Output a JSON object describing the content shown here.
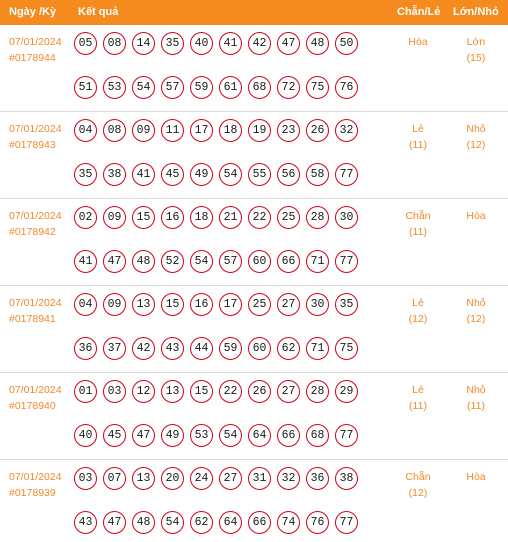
{
  "header": {
    "date_label": "Ngày /Kỳ",
    "result_label": "Kết quả",
    "odd_even_label": "Chẵn/Lẻ",
    "big_small_label": "Lớn/Nhỏ"
  },
  "rows": [
    {
      "date": "07/01/2024",
      "draw": "#0178944",
      "numbers_top": [
        "05",
        "08",
        "14",
        "35",
        "40",
        "41",
        "42",
        "47",
        "48",
        "50"
      ],
      "numbers_bottom": [
        "51",
        "53",
        "54",
        "57",
        "59",
        "61",
        "68",
        "72",
        "75",
        "76"
      ],
      "odd_even": "Hòa",
      "odd_even_count": "",
      "big_small": "Lớn",
      "big_small_count": "(15)"
    },
    {
      "date": "07/01/2024",
      "draw": "#0178943",
      "numbers_top": [
        "04",
        "08",
        "09",
        "11",
        "17",
        "18",
        "19",
        "23",
        "26",
        "32"
      ],
      "numbers_bottom": [
        "35",
        "38",
        "41",
        "45",
        "49",
        "54",
        "55",
        "56",
        "58",
        "77"
      ],
      "odd_even": "Lẻ",
      "odd_even_count": "(11)",
      "big_small": "Nhỏ",
      "big_small_count": "(12)"
    },
    {
      "date": "07/01/2024",
      "draw": "#0178942",
      "numbers_top": [
        "02",
        "09",
        "15",
        "16",
        "18",
        "21",
        "22",
        "25",
        "28",
        "30"
      ],
      "numbers_bottom": [
        "41",
        "47",
        "48",
        "52",
        "54",
        "57",
        "60",
        "66",
        "71",
        "77"
      ],
      "odd_even": "Chẵn",
      "odd_even_count": "(11)",
      "big_small": "Hòa",
      "big_small_count": ""
    },
    {
      "date": "07/01/2024",
      "draw": "#0178941",
      "numbers_top": [
        "04",
        "09",
        "13",
        "15",
        "16",
        "17",
        "25",
        "27",
        "30",
        "35"
      ],
      "numbers_bottom": [
        "36",
        "37",
        "42",
        "43",
        "44",
        "59",
        "60",
        "62",
        "71",
        "75"
      ],
      "odd_even": "Lẻ",
      "odd_even_count": "(12)",
      "big_small": "Nhỏ",
      "big_small_count": "(12)"
    },
    {
      "date": "07/01/2024",
      "draw": "#0178940",
      "numbers_top": [
        "01",
        "03",
        "12",
        "13",
        "15",
        "22",
        "26",
        "27",
        "28",
        "29"
      ],
      "numbers_bottom": [
        "40",
        "45",
        "47",
        "49",
        "53",
        "54",
        "64",
        "66",
        "68",
        "77"
      ],
      "odd_even": "Lẻ",
      "odd_even_count": "(11)",
      "big_small": "Nhỏ",
      "big_small_count": "(11)"
    },
    {
      "date": "07/01/2024",
      "draw": "#0178939",
      "numbers_top": [
        "03",
        "07",
        "13",
        "20",
        "24",
        "27",
        "31",
        "32",
        "36",
        "38"
      ],
      "numbers_bottom": [
        "43",
        "47",
        "48",
        "54",
        "62",
        "64",
        "66",
        "74",
        "76",
        "77"
      ],
      "odd_even": "Chẵn",
      "odd_even_count": "(12)",
      "big_small": "Hòa",
      "big_small_count": ""
    }
  ],
  "colors": {
    "header_bg": "#f58a1f",
    "accent_text": "#f08a2c",
    "ball_border": "#d0021b"
  }
}
